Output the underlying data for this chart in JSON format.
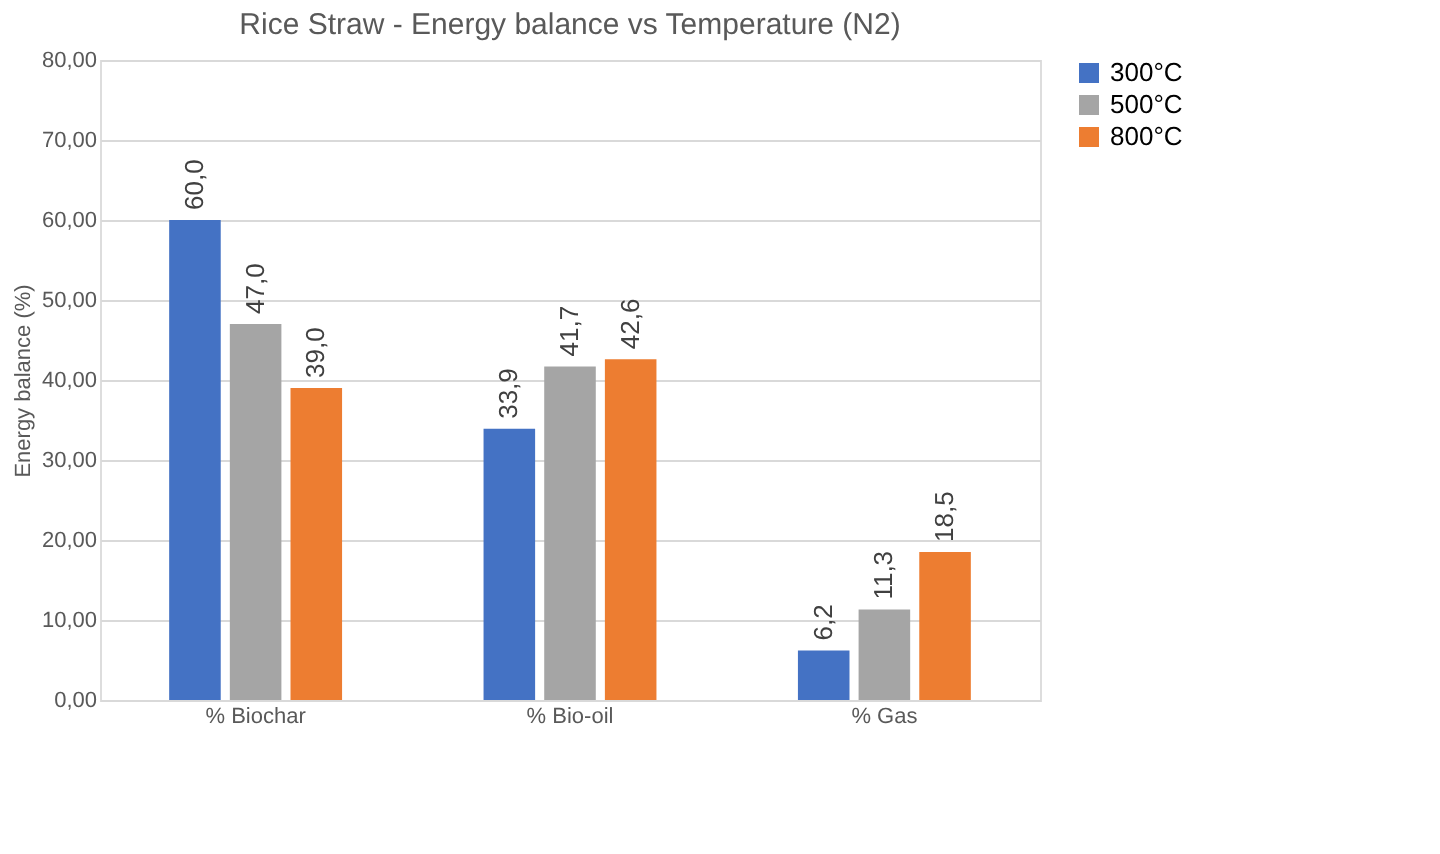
{
  "chart_data": {
    "type": "bar",
    "title": "Rice Straw - Energy balance vs Temperature (N2)",
    "ylabel": "Energy balance (%)",
    "categories": [
      "% Biochar",
      "% Bio-oil",
      "% Gas"
    ],
    "series": [
      {
        "name": "300°C",
        "color": "#4472c4",
        "values": [
          60.0,
          33.9,
          6.2
        ],
        "value_labels": [
          "60,0",
          "33,9",
          "6,2"
        ]
      },
      {
        "name": "500°C",
        "color": "#a5a5a5",
        "values": [
          47.0,
          41.7,
          11.3
        ],
        "value_labels": [
          "47,0",
          "41,7",
          "11,3"
        ]
      },
      {
        "name": "800°C",
        "color": "#ed7d31",
        "values": [
          39.0,
          42.6,
          18.5
        ],
        "value_labels": [
          "39,0",
          "42,6",
          "18,5"
        ]
      }
    ],
    "ylim": [
      0,
      80
    ],
    "yticks": [
      {
        "value": 0,
        "label": "0,00"
      },
      {
        "value": 10,
        "label": "10,00"
      },
      {
        "value": 20,
        "label": "20,00"
      },
      {
        "value": 30,
        "label": "30,00"
      },
      {
        "value": 40,
        "label": "40,00"
      },
      {
        "value": 50,
        "label": "50,00"
      },
      {
        "value": 60,
        "label": "60,00"
      },
      {
        "value": 70,
        "label": "70,00"
      },
      {
        "value": 80,
        "label": "80,00"
      }
    ],
    "grid": "y",
    "legend": "right"
  }
}
